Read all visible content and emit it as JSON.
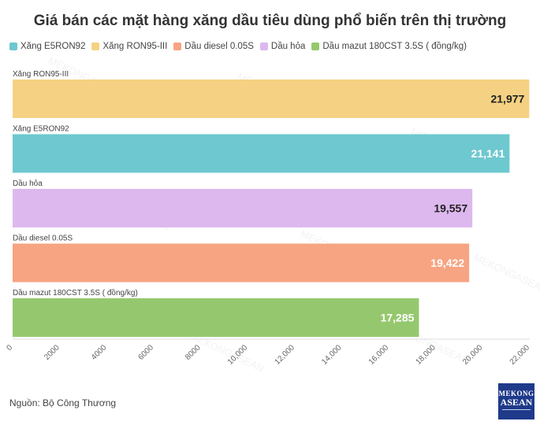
{
  "chart_data": {
    "type": "bar",
    "orientation": "horizontal",
    "title": "Giá bán các mặt hàng xăng dầu tiêu dùng phổ biến trên thị trường",
    "legend": {
      "placement": "top-left",
      "items": [
        {
          "name": "Xăng E5RON92",
          "color": "#6ec8cf"
        },
        {
          "name": "Xăng RON95-III",
          "color": "#f5d283"
        },
        {
          "name": "Dầu diesel 0.05S",
          "color": "#f7a482"
        },
        {
          "name": "Dầu hỏa",
          "color": "#ddb8ee"
        },
        {
          "name": "Dầu mazut 180CST 3.5S ( đồng/kg)",
          "color": "#95c86e"
        }
      ]
    },
    "bars": [
      {
        "category": "Xăng RON95-III",
        "value": 21977,
        "label": "21,977",
        "color": "#f5d283",
        "label_color": "#222222"
      },
      {
        "category": "Xăng E5RON92",
        "value": 21141,
        "label": "21,141",
        "color": "#6ec8cf",
        "label_color": "#ffffff"
      },
      {
        "category": "Dầu hỏa",
        "value": 19557,
        "label": "19,557",
        "color": "#ddb8ee",
        "label_color": "#222222"
      },
      {
        "category": "Dầu diesel 0.05S",
        "value": 19422,
        "label": "19,422",
        "color": "#f7a482",
        "label_color": "#ffffff"
      },
      {
        "category": "Dầu mazut 180CST 3.5S ( đồng/kg)",
        "value": 17285,
        "label": "17,285",
        "color": "#95c86e",
        "label_color": "#ffffff"
      }
    ],
    "xlim": [
      0,
      22000
    ],
    "xticks": [
      {
        "value": 0,
        "label": "0"
      },
      {
        "value": 2000,
        "label": "2000"
      },
      {
        "value": 4000,
        "label": "4000"
      },
      {
        "value": 6000,
        "label": "6000"
      },
      {
        "value": 8000,
        "label": "8000"
      },
      {
        "value": 10000,
        "label": "10,000"
      },
      {
        "value": 12000,
        "label": "12,000"
      },
      {
        "value": 14000,
        "label": "14,000"
      },
      {
        "value": 16000,
        "label": "16,000"
      },
      {
        "value": 18000,
        "label": "18,000"
      },
      {
        "value": 20000,
        "label": "20,000"
      },
      {
        "value": 22000,
        "label": "22,000"
      }
    ],
    "grid": false
  },
  "source": "Nguồn: Bộ Công Thương",
  "logo": {
    "line1": "MEKONG",
    "line2": "ASEAN"
  }
}
